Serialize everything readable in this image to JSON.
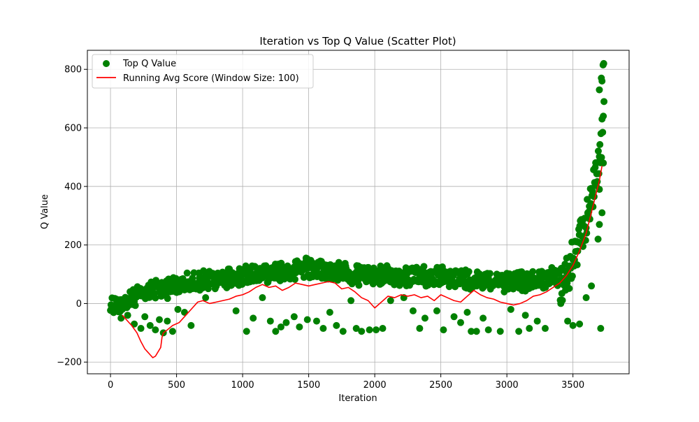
{
  "chart_data": {
    "type": "scatter",
    "title": "Iteration vs Top Q Value (Scatter Plot)",
    "xlabel": "Iteration",
    "ylabel": "Q Value",
    "xlim": [
      -175,
      3925
    ],
    "ylim": [
      -240,
      865
    ],
    "x_ticks": [
      0,
      500,
      1000,
      1500,
      2000,
      2500,
      3000,
      3500
    ],
    "y_ticks": [
      -200,
      0,
      200,
      400,
      600,
      800
    ],
    "grid": true,
    "legend_position": "upper-left",
    "colors": {
      "scatter": "#008000",
      "line": "#ff0000"
    },
    "series": [
      {
        "name": "Top Q Value",
        "kind": "scatter",
        "trend": [
          [
            0,
            5
          ],
          [
            100,
            18
          ],
          [
            200,
            38
          ],
          [
            300,
            58
          ],
          [
            400,
            68
          ],
          [
            500,
            75
          ],
          [
            700,
            92
          ],
          [
            900,
            105
          ],
          [
            1100,
            118
          ],
          [
            1300,
            128
          ],
          [
            1500,
            135
          ],
          [
            1700,
            125
          ],
          [
            1900,
            110
          ],
          [
            2100,
            108
          ],
          [
            2300,
            110
          ],
          [
            2500,
            105
          ],
          [
            2700,
            100
          ],
          [
            2900,
            95
          ],
          [
            3100,
            92
          ],
          [
            3300,
            95
          ],
          [
            3400,
            115
          ],
          [
            3450,
            150
          ],
          [
            3500,
            200
          ],
          [
            3550,
            260
          ],
          [
            3600,
            340
          ],
          [
            3650,
            440
          ],
          [
            3700,
            560
          ],
          [
            3720,
            620
          ]
        ],
        "outliers": [
          [
            80,
            -50
          ],
          [
            130,
            -40
          ],
          [
            180,
            -70
          ],
          [
            230,
            -85
          ],
          [
            260,
            -45
          ],
          [
            300,
            -75
          ],
          [
            340,
            -90
          ],
          [
            370,
            -55
          ],
          [
            400,
            -100
          ],
          [
            430,
            -60
          ],
          [
            470,
            -95
          ],
          [
            510,
            -20
          ],
          [
            560,
            -30
          ],
          [
            610,
            -75
          ],
          [
            720,
            20
          ],
          [
            950,
            -25
          ],
          [
            1030,
            -95
          ],
          [
            1080,
            -50
          ],
          [
            1150,
            20
          ],
          [
            1210,
            -60
          ],
          [
            1250,
            -95
          ],
          [
            1290,
            -80
          ],
          [
            1330,
            -65
          ],
          [
            1390,
            -45
          ],
          [
            1430,
            -80
          ],
          [
            1490,
            -55
          ],
          [
            1560,
            -60
          ],
          [
            1610,
            -85
          ],
          [
            1660,
            -30
          ],
          [
            1710,
            -75
          ],
          [
            1760,
            -95
          ],
          [
            1820,
            10
          ],
          [
            1860,
            -85
          ],
          [
            1900,
            -95
          ],
          [
            1960,
            -90
          ],
          [
            2010,
            -90
          ],
          [
            2060,
            -85
          ],
          [
            2120,
            10
          ],
          [
            2220,
            20
          ],
          [
            2290,
            -25
          ],
          [
            2340,
            -85
          ],
          [
            2380,
            -50
          ],
          [
            2470,
            -25
          ],
          [
            2520,
            -90
          ],
          [
            2600,
            -45
          ],
          [
            2650,
            -65
          ],
          [
            2700,
            -30
          ],
          [
            2730,
            -95
          ],
          [
            2770,
            -95
          ],
          [
            2820,
            -50
          ],
          [
            2860,
            -90
          ],
          [
            2950,
            -95
          ],
          [
            3030,
            -20
          ],
          [
            3090,
            -95
          ],
          [
            3140,
            -40
          ],
          [
            3170,
            -85
          ],
          [
            3230,
            -60
          ],
          [
            3290,
            -85
          ],
          [
            3460,
            -60
          ],
          [
            3500,
            -75
          ],
          [
            3550,
            -70
          ],
          [
            3600,
            20
          ],
          [
            3640,
            60
          ],
          [
            3690,
            220
          ],
          [
            3700,
            270
          ],
          [
            3710,
            -85
          ],
          [
            3700,
            390
          ],
          [
            3720,
            310
          ],
          [
            3730,
            480
          ],
          [
            3725,
            585
          ],
          [
            3730,
            640
          ],
          [
            3735,
            690
          ],
          [
            3720,
            760
          ],
          [
            3728,
            815
          ],
          [
            3733,
            820
          ],
          [
            3715,
            770
          ],
          [
            3700,
            730
          ]
        ]
      },
      {
        "name": "Running Avg Score (Window Size: 100)",
        "kind": "line",
        "points": [
          [
            90,
            -40
          ],
          [
            120,
            -55
          ],
          [
            160,
            -75
          ],
          [
            200,
            -100
          ],
          [
            230,
            -130
          ],
          [
            260,
            -155
          ],
          [
            280,
            -165
          ],
          [
            300,
            -175
          ],
          [
            320,
            -185
          ],
          [
            340,
            -180
          ],
          [
            360,
            -165
          ],
          [
            380,
            -150
          ],
          [
            390,
            -115
          ],
          [
            400,
            -100
          ],
          [
            430,
            -90
          ],
          [
            470,
            -75
          ],
          [
            520,
            -65
          ],
          [
            570,
            -40
          ],
          [
            620,
            -15
          ],
          [
            660,
            5
          ],
          [
            700,
            10
          ],
          [
            750,
            0
          ],
          [
            800,
            5
          ],
          [
            850,
            10
          ],
          [
            900,
            15
          ],
          [
            950,
            25
          ],
          [
            1000,
            30
          ],
          [
            1050,
            40
          ],
          [
            1100,
            55
          ],
          [
            1150,
            65
          ],
          [
            1200,
            55
          ],
          [
            1250,
            60
          ],
          [
            1300,
            45
          ],
          [
            1350,
            55
          ],
          [
            1400,
            70
          ],
          [
            1450,
            65
          ],
          [
            1500,
            60
          ],
          [
            1550,
            65
          ],
          [
            1600,
            70
          ],
          [
            1650,
            75
          ],
          [
            1700,
            70
          ],
          [
            1750,
            50
          ],
          [
            1800,
            55
          ],
          [
            1850,
            40
          ],
          [
            1900,
            20
          ],
          [
            1950,
            10
          ],
          [
            2000,
            -15
          ],
          [
            2050,
            5
          ],
          [
            2100,
            25
          ],
          [
            2150,
            20
          ],
          [
            2200,
            30
          ],
          [
            2250,
            25
          ],
          [
            2300,
            30
          ],
          [
            2350,
            20
          ],
          [
            2400,
            25
          ],
          [
            2450,
            10
          ],
          [
            2500,
            30
          ],
          [
            2550,
            20
          ],
          [
            2600,
            10
          ],
          [
            2650,
            5
          ],
          [
            2700,
            25
          ],
          [
            2750,
            45
          ],
          [
            2800,
            30
          ],
          [
            2850,
            20
          ],
          [
            2900,
            15
          ],
          [
            2950,
            5
          ],
          [
            3000,
            0
          ],
          [
            3050,
            -5
          ],
          [
            3100,
            0
          ],
          [
            3150,
            10
          ],
          [
            3200,
            25
          ],
          [
            3250,
            30
          ],
          [
            3300,
            40
          ],
          [
            3350,
            55
          ],
          [
            3400,
            70
          ],
          [
            3450,
            95
          ],
          [
            3500,
            130
          ],
          [
            3550,
            180
          ],
          [
            3600,
            240
          ],
          [
            3650,
            330
          ],
          [
            3700,
            420
          ],
          [
            3720,
            470
          ]
        ]
      }
    ]
  }
}
